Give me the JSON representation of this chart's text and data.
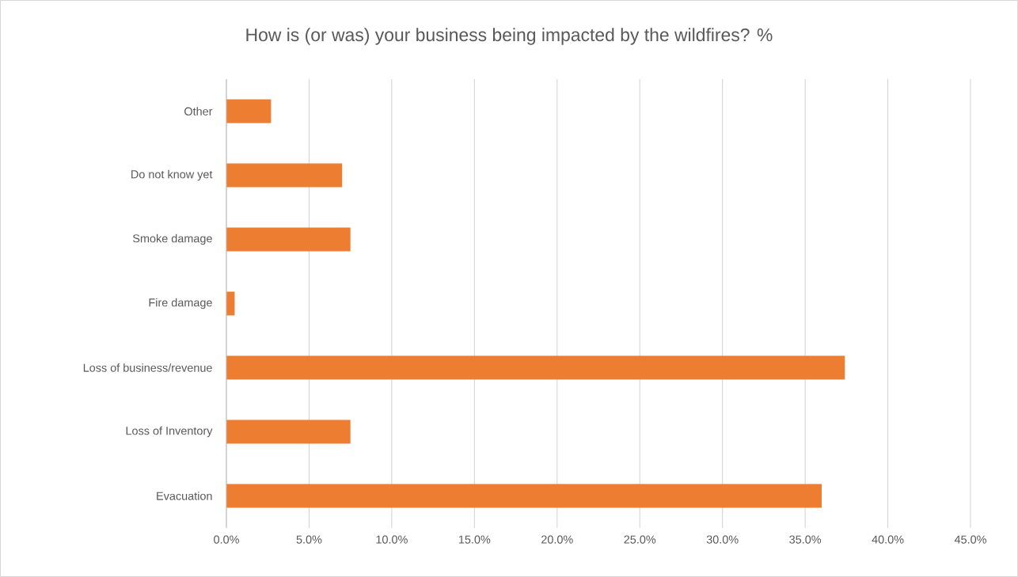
{
  "chart_data": {
    "type": "bar",
    "orientation": "horizontal",
    "title": "How is (or was) your business being impacted by the wildfires? %",
    "categories": [
      "Other",
      "Do not know yet",
      "Smoke damage",
      "Fire damage",
      "Loss of business/revenue",
      "Loss of Inventory",
      "Evacuation"
    ],
    "values": [
      2.7,
      7.0,
      7.5,
      0.5,
      37.4,
      7.5,
      36.0
    ],
    "color": "#ed7d31",
    "xlim": [
      0,
      45
    ],
    "xticks": [
      {
        "value": 0,
        "label": "0.0%"
      },
      {
        "value": 5,
        "label": "5.0%"
      },
      {
        "value": 10,
        "label": "10.0%"
      },
      {
        "value": 15,
        "label": "15.0%"
      },
      {
        "value": 20,
        "label": "20.0%"
      },
      {
        "value": 25,
        "label": "25.0%"
      },
      {
        "value": 30,
        "label": "30.0%"
      },
      {
        "value": 35,
        "label": "35.0%"
      },
      {
        "value": 40,
        "label": "40.0%"
      },
      {
        "value": 45,
        "label": "45.0%"
      }
    ],
    "grid": "x"
  }
}
